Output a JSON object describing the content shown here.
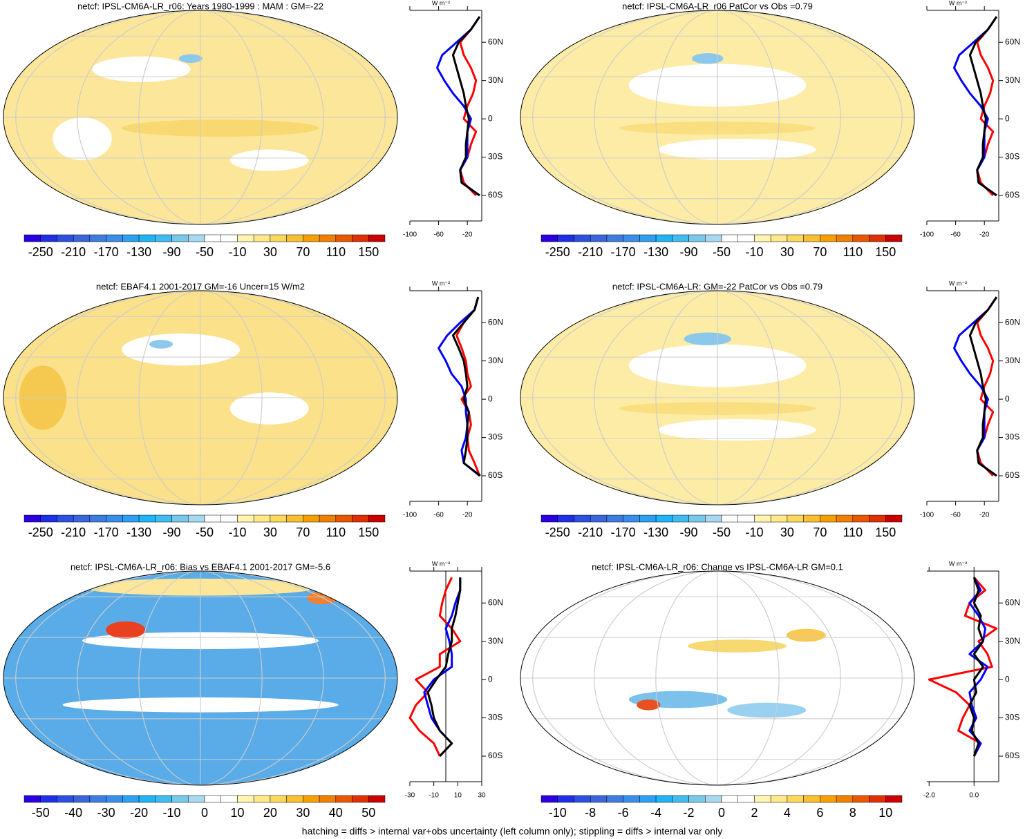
{
  "chart_data": [
    {
      "type": "map",
      "title": "netcf: IPSL-CM6A-LR_r06: Years 1980-1999 : MAM : GM=-22",
      "base": "#fbe69a",
      "colorbar": {
        "lim": [
          -270,
          170
        ],
        "ticks": [
          -250,
          -210,
          -170,
          -130,
          -90,
          -50,
          -10,
          30,
          70,
          110,
          150
        ],
        "colors": [
          "#2a00e0",
          "#1e2fe6",
          "#2e50e0",
          "#3a66dc",
          "#3f7ce0",
          "#3a8ee8",
          "#2ea0f0",
          "#20b4f4",
          "#40bcf0",
          "#78c8ec",
          "#a8d8f0",
          "#ffffff",
          "#ffffff",
          "#fff4b0",
          "#fde88a",
          "#fbd85a",
          "#f8c030",
          "#f5a000",
          "#f08000",
          "#e85800",
          "#e03000",
          "#c80000"
        ]
      },
      "zonal": {
        "type": "line",
        "xlabel": "W m⁻²",
        "xlim": [
          -100,
          0
        ],
        "xticks": [
          -100,
          -60,
          -20
        ],
        "ylim": [
          -80,
          85
        ],
        "yticks": [
          {
            "value": 60,
            "label": "60N"
          },
          {
            "value": 30,
            "label": "30N"
          },
          {
            "value": 0,
            "label": "0"
          },
          {
            "value": -30,
            "label": "30S"
          },
          {
            "value": -60,
            "label": "60S"
          }
        ],
        "lat": [
          -60,
          -50,
          -40,
          -30,
          -20,
          -10,
          0,
          10,
          20,
          30,
          40,
          50,
          60,
          70,
          80
        ],
        "series": [
          {
            "color": "#ff0000",
            "values": [
              -8,
              -25,
              -30,
              -20,
              -15,
              -8,
              -25,
              -20,
              -12,
              -8,
              -15,
              -25,
              -30,
              -15,
              -3
            ]
          },
          {
            "color": "#0000ff",
            "values": [
              -3,
              -28,
              -30,
              -20,
              -20,
              -20,
              -15,
              -25,
              -40,
              -52,
              -62,
              -55,
              -35,
              -15,
              -3
            ]
          },
          {
            "color": "#000000",
            "values": [
              -3,
              -28,
              -30,
              -22,
              -22,
              -20,
              -18,
              -22,
              -25,
              -30,
              -35,
              -40,
              -32,
              -15,
              -3
            ]
          }
        ]
      }
    },
    {
      "type": "map",
      "title": "netcf: IPSL-CM6A-LR_r06 PatCor vs Obs =0.79",
      "base": "#fdeca6",
      "colorbar": {
        "lim": [
          -270,
          170
        ],
        "ticks": [
          -250,
          -210,
          -170,
          -130,
          -90,
          -50,
          -10,
          30,
          70,
          110,
          150
        ],
        "colors": [
          "#2a00e0",
          "#1e2fe6",
          "#2e50e0",
          "#3a66dc",
          "#3f7ce0",
          "#3a8ee8",
          "#2ea0f0",
          "#20b4f4",
          "#40bcf0",
          "#78c8ec",
          "#a8d8f0",
          "#ffffff",
          "#ffffff",
          "#fff4b0",
          "#fde88a",
          "#fbd85a",
          "#f8c030",
          "#f5a000",
          "#f08000",
          "#e85800",
          "#e03000",
          "#c80000"
        ]
      },
      "zonal": {
        "type": "line",
        "xlabel": "W m⁻²",
        "xlim": [
          -100,
          0
        ],
        "xticks": [
          -100,
          -60,
          -20
        ],
        "ylim": [
          -80,
          85
        ],
        "yticks": [
          {
            "value": 60,
            "label": "60N"
          },
          {
            "value": 30,
            "label": "30N"
          },
          {
            "value": 0,
            "label": "0"
          },
          {
            "value": -30,
            "label": "30S"
          },
          {
            "value": -60,
            "label": "60S"
          }
        ],
        "lat": [
          -60,
          -50,
          -40,
          -30,
          -20,
          -10,
          0,
          10,
          20,
          30,
          40,
          50,
          60,
          70,
          80
        ],
        "series": [
          {
            "color": "#ff0000",
            "values": [
              -8,
              -25,
              -30,
              -20,
              -15,
              -8,
              -25,
              -20,
              -12,
              -8,
              -15,
              -25,
              -30,
              -15,
              -3
            ]
          },
          {
            "color": "#0000ff",
            "values": [
              -3,
              -28,
              -30,
              -20,
              -20,
              -20,
              -15,
              -25,
              -40,
              -52,
              -62,
              -55,
              -35,
              -15,
              -3
            ]
          },
          {
            "color": "#000000",
            "values": [
              -3,
              -28,
              -30,
              -22,
              -22,
              -20,
              -18,
              -22,
              -25,
              -30,
              -35,
              -40,
              -32,
              -15,
              -3
            ]
          }
        ]
      }
    },
    {
      "type": "map",
      "title": "netcf: EBAF4.1 2001-2017 GM=-16 Uncer=15 W/m2",
      "base": "#fbe18a",
      "colorbar": {
        "lim": [
          -270,
          170
        ],
        "ticks": [
          -250,
          -210,
          -170,
          -130,
          -90,
          -50,
          -10,
          30,
          70,
          110,
          150
        ],
        "colors": [
          "#2a00e0",
          "#1e2fe6",
          "#2e50e0",
          "#3a66dc",
          "#3f7ce0",
          "#3a8ee8",
          "#2ea0f0",
          "#20b4f4",
          "#40bcf0",
          "#78c8ec",
          "#a8d8f0",
          "#ffffff",
          "#ffffff",
          "#fff4b0",
          "#fde88a",
          "#fbd85a",
          "#f8c030",
          "#f5a000",
          "#f08000",
          "#e85800",
          "#e03000",
          "#c80000"
        ]
      },
      "zonal": {
        "type": "line",
        "xlabel": "W m⁻²",
        "xlim": [
          -100,
          0
        ],
        "xticks": [
          -100,
          -60,
          -20
        ],
        "ylim": [
          -80,
          85
        ],
        "yticks": [
          {
            "value": 60,
            "label": "60N"
          },
          {
            "value": 30,
            "label": "30N"
          },
          {
            "value": 0,
            "label": "0"
          },
          {
            "value": -30,
            "label": "30S"
          },
          {
            "value": -60,
            "label": "60S"
          }
        ],
        "lat": [
          -60,
          -50,
          -40,
          -30,
          -20,
          -10,
          0,
          10,
          20,
          30,
          40,
          50,
          60,
          70,
          80
        ],
        "series": [
          {
            "color": "#ff0000",
            "values": [
              -3,
              -10,
              -18,
              -20,
              -15,
              -18,
              -28,
              -15,
              -20,
              -22,
              -28,
              -35,
              -25,
              -10,
              -5
            ]
          },
          {
            "color": "#0000ff",
            "values": [
              -3,
              -25,
              -28,
              -22,
              -20,
              -22,
              -22,
              -28,
              -42,
              -50,
              -60,
              -48,
              -30,
              -10,
              -5
            ]
          },
          {
            "color": "#000000",
            "values": [
              -2,
              -25,
              -22,
              -20,
              -20,
              -18,
              -25,
              -20,
              -22,
              -25,
              -32,
              -40,
              -25,
              -10,
              -5
            ]
          }
        ]
      }
    },
    {
      "type": "map",
      "title": "netcf: IPSL-CM6A-LR: GM=-22 PatCor vs Obs =0.79",
      "base": "#fdeca6",
      "colorbar": {
        "lim": [
          -270,
          170
        ],
        "ticks": [
          -250,
          -210,
          -170,
          -130,
          -90,
          -50,
          -10,
          30,
          70,
          110,
          150
        ],
        "colors": [
          "#2a00e0",
          "#1e2fe6",
          "#2e50e0",
          "#3a66dc",
          "#3f7ce0",
          "#3a8ee8",
          "#2ea0f0",
          "#20b4f4",
          "#40bcf0",
          "#78c8ec",
          "#a8d8f0",
          "#ffffff",
          "#ffffff",
          "#fff4b0",
          "#fde88a",
          "#fbd85a",
          "#f8c030",
          "#f5a000",
          "#f08000",
          "#e85800",
          "#e03000",
          "#c80000"
        ]
      },
      "zonal": {
        "type": "line",
        "xlabel": "W m⁻²",
        "xlim": [
          -100,
          0
        ],
        "xticks": [
          -100,
          -60,
          -20
        ],
        "ylim": [
          -80,
          85
        ],
        "yticks": [
          {
            "value": 60,
            "label": "60N"
          },
          {
            "value": 30,
            "label": "30N"
          },
          {
            "value": 0,
            "label": "0"
          },
          {
            "value": -30,
            "label": "30S"
          },
          {
            "value": -60,
            "label": "60S"
          }
        ],
        "lat": [
          -60,
          -50,
          -40,
          -30,
          -20,
          -10,
          0,
          10,
          20,
          30,
          40,
          50,
          60,
          70,
          80
        ],
        "series": [
          {
            "color": "#ff0000",
            "values": [
              -8,
              -25,
              -30,
              -20,
              -15,
              -8,
              -25,
              -20,
              -12,
              -8,
              -15,
              -25,
              -30,
              -15,
              -3
            ]
          },
          {
            "color": "#0000ff",
            "values": [
              -3,
              -28,
              -30,
              -20,
              -20,
              -20,
              -15,
              -25,
              -40,
              -52,
              -62,
              -55,
              -35,
              -15,
              -3
            ]
          },
          {
            "color": "#000000",
            "values": [
              -3,
              -28,
              -30,
              -22,
              -22,
              -20,
              -18,
              -22,
              -25,
              -30,
              -35,
              -40,
              -32,
              -15,
              -3
            ]
          }
        ]
      }
    },
    {
      "type": "map",
      "title": "netcf: IPSL-CM6A-LR_r06: Bias vs EBAF4.1 2001-2017 GM=-5.6",
      "base": "#5aace8",
      "colorbar": {
        "lim": [
          -55,
          55
        ],
        "ticks": [
          -50,
          -40,
          -30,
          -20,
          -10,
          0,
          10,
          20,
          30,
          40,
          50
        ],
        "colors": [
          "#2a00e0",
          "#1e2fe6",
          "#2e50e0",
          "#3a66dc",
          "#3f7ce0",
          "#3a8ee8",
          "#2ea0f0",
          "#20b4f4",
          "#40bcf0",
          "#78c8ec",
          "#a8d8f0",
          "#ffffff",
          "#ffffff",
          "#fff4b0",
          "#fde88a",
          "#fbd85a",
          "#f8c030",
          "#f5a000",
          "#f08000",
          "#e85800",
          "#e03000",
          "#c80000"
        ]
      },
      "zonal": {
        "type": "line",
        "xlabel": "W m⁻²",
        "xlim": [
          -30,
          30
        ],
        "xticks": [
          -30,
          -10,
          10,
          30
        ],
        "ylim": [
          -80,
          85
        ],
        "yticks": [
          {
            "value": 60,
            "label": "60N"
          },
          {
            "value": 30,
            "label": "30N"
          },
          {
            "value": 0,
            "label": "0"
          },
          {
            "value": -30,
            "label": "30S"
          },
          {
            "value": -60,
            "label": "60S"
          }
        ],
        "lat": [
          -60,
          -50,
          -40,
          -30,
          -20,
          -10,
          0,
          10,
          20,
          30,
          40,
          50,
          60,
          70,
          80
        ],
        "series": [
          {
            "color": "#ff0000",
            "values": [
              -5,
              -10,
              -22,
              -30,
              -25,
              -15,
              -25,
              -5,
              -5,
              12,
              5,
              -5,
              -3,
              0,
              5
            ]
          },
          {
            "color": "#0000ff",
            "values": [
              -5,
              5,
              -5,
              -12,
              -15,
              -18,
              -10,
              5,
              5,
              3,
              0,
              5,
              8,
              12,
              12
            ]
          },
          {
            "color": "#000000",
            "values": [
              -5,
              5,
              -5,
              -10,
              -12,
              -15,
              -8,
              0,
              2,
              5,
              5,
              8,
              10,
              12,
              12
            ]
          }
        ]
      }
    },
    {
      "type": "map",
      "title": "netcf: IPSL-CM6A-LR_r06: Change vs IPSL-CM6A-LR GM=0.1",
      "base": "#ffffff",
      "colorbar": {
        "lim": [
          -11,
          11
        ],
        "ticks": [
          -10,
          -8,
          -6,
          -4,
          -2,
          0,
          2,
          4,
          6,
          8,
          10
        ],
        "colors": [
          "#2a00e0",
          "#1e2fe6",
          "#2e50e0",
          "#3a66dc",
          "#3f7ce0",
          "#3a8ee8",
          "#2ea0f0",
          "#20b4f4",
          "#40bcf0",
          "#78c8ec",
          "#a8d8f0",
          "#ffffff",
          "#ffffff",
          "#fff4b0",
          "#fde88a",
          "#fbd85a",
          "#f8c030",
          "#f5a000",
          "#f08000",
          "#e85800",
          "#e03000",
          "#c80000"
        ]
      },
      "zonal": {
        "type": "line",
        "xlabel": "W m⁻²",
        "xlim": [
          -2.1,
          1.1
        ],
        "xticks": [
          {
            "value": -2,
            "label": "-2.0"
          },
          {
            "value": 0,
            "label": "0.0"
          }
        ],
        "ylim": [
          -80,
          85
        ],
        "yticks": [
          {
            "value": 60,
            "label": "60N"
          },
          {
            "value": 30,
            "label": "30N"
          },
          {
            "value": 0,
            "label": "0"
          },
          {
            "value": -30,
            "label": "30S"
          },
          {
            "value": -60,
            "label": "60S"
          }
        ],
        "lat": [
          -60,
          -50,
          -40,
          -30,
          -20,
          -10,
          0,
          10,
          20,
          30,
          40,
          50,
          60,
          70,
          80
        ],
        "series": [
          {
            "color": "#ff0000",
            "values": [
              0,
              0.3,
              -0.7,
              -0.5,
              -0.2,
              -0.8,
              -2,
              0.8,
              0.6,
              0.2,
              1,
              -0.4,
              -0.2,
              0.5,
              0
            ]
          },
          {
            "color": "#0000ff",
            "values": [
              0,
              0.3,
              -0.2,
              0.1,
              -0.1,
              -0.2,
              0.3,
              0.6,
              -0.2,
              0.4,
              0.5,
              0.2,
              -0.2,
              0.3,
              0
            ]
          },
          {
            "color": "#000000",
            "values": [
              0,
              0.2,
              -0.1,
              0,
              -0.2,
              0.1,
              0,
              0.4,
              0,
              0.4,
              0.2,
              0.3,
              0,
              0.2,
              0
            ]
          }
        ]
      }
    }
  ],
  "note": "hatching = diffs > internal var+obs uncertainty (left column only); stippling = diffs > internal var only"
}
